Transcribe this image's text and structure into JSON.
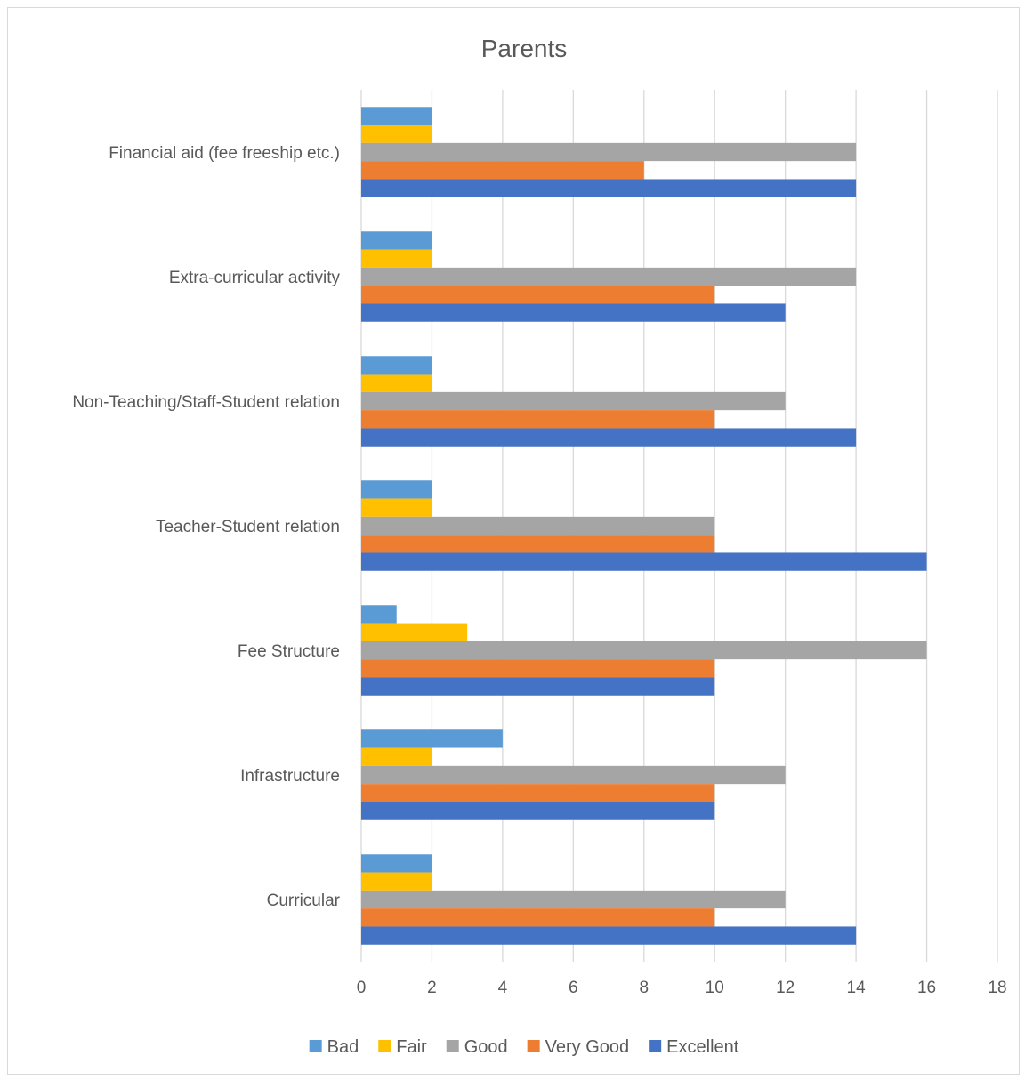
{
  "chart_data": {
    "type": "bar",
    "orientation": "horizontal",
    "title": "Parents",
    "xlabel": "",
    "ylabel": "",
    "xlim": [
      0,
      18
    ],
    "x_ticks": [
      0,
      2,
      4,
      6,
      8,
      10,
      12,
      14,
      16,
      18
    ],
    "grid": "vertical",
    "legend_position": "bottom",
    "categories": [
      "Curricular",
      "Infrastructure",
      "Fee Structure",
      "Teacher-Student relation",
      "Non-Teaching/Staff-Student relation",
      "Extra-curricular activity",
      "Financial aid (fee freeship etc.)"
    ],
    "series": [
      {
        "name": "Bad",
        "color": "#5B9BD5",
        "values": [
          2,
          4,
          1,
          2,
          2,
          2,
          2
        ]
      },
      {
        "name": "Fair",
        "color": "#FFC000",
        "values": [
          2,
          2,
          3,
          2,
          2,
          2,
          2
        ]
      },
      {
        "name": "Good",
        "color": "#A5A5A5",
        "values": [
          12,
          12,
          16,
          10,
          12,
          14,
          14
        ]
      },
      {
        "name": "Very Good",
        "color": "#ED7D31",
        "values": [
          10,
          10,
          10,
          10,
          10,
          10,
          8
        ]
      },
      {
        "name": "Excellent",
        "color": "#4472C4",
        "values": [
          14,
          10,
          10,
          16,
          14,
          12,
          14
        ]
      }
    ]
  }
}
